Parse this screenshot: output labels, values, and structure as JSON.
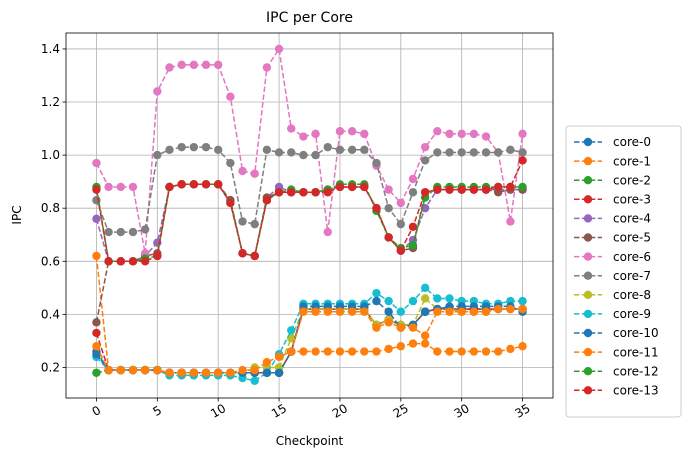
{
  "chart_data": {
    "type": "line",
    "title": "IPC per Core",
    "xlabel": "Checkpoint",
    "ylabel": "IPC",
    "xlim": [
      -2.5,
      37.5
    ],
    "ylim": [
      0.085,
      1.46
    ],
    "xticks": [
      0,
      5,
      10,
      15,
      20,
      25,
      30,
      35
    ],
    "yticks": [
      0.2,
      0.4,
      0.6,
      0.8,
      1.0,
      1.2,
      1.4
    ],
    "ytick_labels": [
      "0.2",
      "0.4",
      "0.6",
      "0.8",
      "1.0",
      "1.2",
      "1.4"
    ],
    "grid": true,
    "legend_position": "outside-right",
    "x": [
      0,
      1,
      2,
      3,
      4,
      5,
      6,
      7,
      8,
      9,
      10,
      11,
      12,
      13,
      14,
      15,
      16,
      17,
      18,
      19,
      20,
      21,
      22,
      23,
      24,
      25,
      26,
      27,
      28,
      29,
      30,
      31,
      32,
      33,
      34,
      35
    ],
    "series": [
      {
        "name": "core-0",
        "color": "#1f77b4",
        "values": [
          0.26,
          0.19,
          0.19,
          0.19,
          0.19,
          0.19,
          0.18,
          0.18,
          0.18,
          0.18,
          0.18,
          0.18,
          0.18,
          0.18,
          0.18,
          0.18,
          0.26,
          0.42,
          0.42,
          0.42,
          0.42,
          0.42,
          0.42,
          0.36,
          0.38,
          0.36,
          0.36,
          0.41,
          0.42,
          0.42,
          0.42,
          0.42,
          0.42,
          0.42,
          0.42,
          0.42
        ]
      },
      {
        "name": "core-1",
        "color": "#ff7f0e",
        "values": [
          0.62,
          0.19,
          0.19,
          0.19,
          0.19,
          0.19,
          0.18,
          0.18,
          0.18,
          0.18,
          0.18,
          0.18,
          0.18,
          0.18,
          0.18,
          0.18,
          0.26,
          0.26,
          0.26,
          0.26,
          0.26,
          0.26,
          0.26,
          0.26,
          0.27,
          0.28,
          0.29,
          0.29,
          0.26,
          0.26,
          0.26,
          0.26,
          0.26,
          0.26,
          0.27,
          0.28
        ]
      },
      {
        "name": "core-2",
        "color": "#2ca02c",
        "values": [
          0.18,
          0.19,
          0.19,
          0.19,
          0.19,
          0.19,
          0.18,
          0.18,
          0.18,
          0.18,
          0.18,
          0.18,
          0.18,
          0.18,
          0.18,
          0.18,
          0.26,
          0.42,
          0.42,
          0.42,
          0.42,
          0.42,
          0.42,
          0.36,
          0.38,
          0.36,
          0.36,
          0.41,
          0.42,
          0.42,
          0.42,
          0.42,
          0.42,
          0.42,
          0.42,
          0.42
        ]
      },
      {
        "name": "core-3",
        "color": "#d62728",
        "values": [
          0.33,
          0.19,
          0.19,
          0.19,
          0.19,
          0.19,
          0.18,
          0.18,
          0.18,
          0.18,
          0.18,
          0.18,
          0.18,
          0.18,
          0.18,
          0.18,
          0.26,
          0.42,
          0.42,
          0.42,
          0.42,
          0.42,
          0.42,
          0.36,
          0.38,
          0.36,
          0.36,
          0.41,
          0.42,
          0.42,
          0.42,
          0.42,
          0.42,
          0.42,
          0.42,
          0.42
        ]
      },
      {
        "name": "core-4",
        "color": "#9467bd",
        "values": [
          0.76,
          0.6,
          0.6,
          0.6,
          0.62,
          0.67,
          0.88,
          0.89,
          0.89,
          0.89,
          0.89,
          0.83,
          0.63,
          0.62,
          0.84,
          0.88,
          0.86,
          0.86,
          0.86,
          0.87,
          0.88,
          0.88,
          0.88,
          0.8,
          0.69,
          0.64,
          0.68,
          0.8,
          0.87,
          0.87,
          0.87,
          0.87,
          0.87,
          0.87,
          0.87,
          0.87
        ]
      },
      {
        "name": "core-5",
        "color": "#8c564b",
        "values": [
          0.37,
          0.6,
          0.6,
          0.6,
          0.62,
          0.63,
          0.88,
          0.89,
          0.89,
          0.89,
          0.89,
          0.83,
          0.63,
          0.62,
          0.84,
          0.86,
          0.86,
          0.86,
          0.86,
          0.87,
          0.88,
          0.88,
          0.88,
          0.8,
          0.69,
          0.64,
          0.65,
          0.86,
          0.87,
          0.87,
          0.87,
          0.87,
          0.87,
          0.86,
          0.87,
          0.87
        ]
      },
      {
        "name": "core-6",
        "color": "#e377c2",
        "values": [
          0.97,
          0.88,
          0.88,
          0.88,
          0.63,
          1.24,
          1.33,
          1.34,
          1.34,
          1.34,
          1.34,
          1.22,
          0.94,
          0.93,
          1.33,
          1.4,
          1.1,
          1.07,
          1.08,
          0.71,
          1.09,
          1.09,
          1.08,
          0.96,
          0.87,
          0.82,
          0.91,
          1.03,
          1.09,
          1.08,
          1.08,
          1.08,
          1.07,
          1.01,
          0.75,
          1.08
        ]
      },
      {
        "name": "core-7",
        "color": "#7f7f7f",
        "values": [
          0.83,
          0.71,
          0.71,
          0.71,
          0.72,
          1.0,
          1.02,
          1.03,
          1.03,
          1.03,
          1.02,
          0.97,
          0.75,
          0.74,
          1.02,
          1.01,
          1.01,
          1.0,
          1.0,
          1.03,
          1.02,
          1.02,
          1.02,
          0.97,
          0.8,
          0.74,
          0.86,
          0.98,
          1.01,
          1.01,
          1.01,
          1.01,
          1.01,
          1.01,
          1.02,
          1.01
        ]
      },
      {
        "name": "core-8",
        "color": "#bcbd22",
        "values": [
          0.24,
          0.19,
          0.19,
          0.19,
          0.19,
          0.19,
          0.18,
          0.18,
          0.18,
          0.18,
          0.18,
          0.18,
          0.18,
          0.2,
          0.2,
          0.2,
          0.31,
          0.42,
          0.42,
          0.42,
          0.42,
          0.42,
          0.42,
          0.36,
          0.38,
          0.36,
          0.36,
          0.46,
          0.42,
          0.42,
          0.41,
          0.41,
          0.41,
          0.42,
          0.42,
          0.42
        ]
      },
      {
        "name": "core-9",
        "color": "#17becf",
        "values": [
          0.24,
          0.19,
          0.19,
          0.19,
          0.19,
          0.19,
          0.17,
          0.17,
          0.17,
          0.17,
          0.17,
          0.17,
          0.16,
          0.15,
          0.18,
          0.25,
          0.34,
          0.44,
          0.44,
          0.44,
          0.44,
          0.44,
          0.44,
          0.48,
          0.45,
          0.41,
          0.45,
          0.5,
          0.46,
          0.46,
          0.45,
          0.45,
          0.44,
          0.44,
          0.45,
          0.45
        ]
      },
      {
        "name": "core-10",
        "color": "#1f77b4",
        "values": [
          0.25,
          0.19,
          0.19,
          0.19,
          0.19,
          0.19,
          0.18,
          0.18,
          0.18,
          0.18,
          0.18,
          0.18,
          0.18,
          0.18,
          0.18,
          0.18,
          0.26,
          0.43,
          0.43,
          0.43,
          0.43,
          0.43,
          0.43,
          0.45,
          0.41,
          0.35,
          0.36,
          0.41,
          0.42,
          0.43,
          0.43,
          0.43,
          0.43,
          0.43,
          0.43,
          0.41
        ]
      },
      {
        "name": "core-11",
        "color": "#ff7f0e",
        "values": [
          0.28,
          0.19,
          0.19,
          0.19,
          0.19,
          0.19,
          0.18,
          0.18,
          0.18,
          0.18,
          0.18,
          0.18,
          0.19,
          0.19,
          0.22,
          0.24,
          0.26,
          0.41,
          0.41,
          0.41,
          0.41,
          0.41,
          0.41,
          0.35,
          0.37,
          0.35,
          0.35,
          0.32,
          0.41,
          0.41,
          0.41,
          0.41,
          0.41,
          0.42,
          0.42,
          0.42
        ]
      },
      {
        "name": "core-12",
        "color": "#2ca02c",
        "values": [
          0.88,
          0.6,
          0.6,
          0.6,
          0.61,
          0.62,
          0.88,
          0.89,
          0.89,
          0.89,
          0.89,
          0.82,
          0.63,
          0.62,
          0.83,
          0.86,
          0.87,
          0.86,
          0.86,
          0.87,
          0.89,
          0.89,
          0.89,
          0.79,
          0.69,
          0.65,
          0.66,
          0.84,
          0.88,
          0.88,
          0.88,
          0.88,
          0.88,
          0.88,
          0.88,
          0.88
        ]
      },
      {
        "name": "core-13",
        "color": "#d62728",
        "values": [
          0.87,
          0.6,
          0.6,
          0.6,
          0.6,
          0.62,
          0.88,
          0.89,
          0.89,
          0.89,
          0.89,
          0.82,
          0.63,
          0.62,
          0.83,
          0.86,
          0.86,
          0.86,
          0.86,
          0.86,
          0.88,
          0.88,
          0.88,
          0.8,
          0.69,
          0.64,
          0.73,
          0.86,
          0.87,
          0.87,
          0.87,
          0.87,
          0.87,
          0.88,
          0.88,
          0.98
        ]
      }
    ]
  }
}
